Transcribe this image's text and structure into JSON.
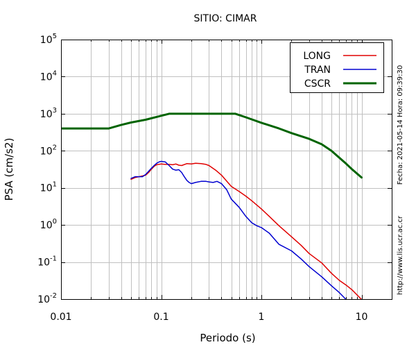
{
  "chart_data": {
    "type": "line",
    "title": "SITIO: CIMAR",
    "xlabel": "Periodo (s)",
    "ylabel": "PSA (cm/s2)",
    "xscale": "log",
    "yscale": "log",
    "xlim": [
      0.01,
      20
    ],
    "ylim": [
      0.01,
      100000
    ],
    "grid": true,
    "legend_placement": "top-right",
    "x_ticks": [
      {
        "value": 0.01,
        "label": "0.01"
      },
      {
        "value": 0.1,
        "label": "0.1"
      },
      {
        "value": 1,
        "label": "1"
      },
      {
        "value": 10,
        "label": "10"
      }
    ],
    "y_ticks": [
      {
        "value": 0.01,
        "base": "10",
        "exp": "-2"
      },
      {
        "value": 0.1,
        "base": "10",
        "exp": "-1"
      },
      {
        "value": 1,
        "base": "10",
        "exp": "0"
      },
      {
        "value": 10,
        "base": "10",
        "exp": "1"
      },
      {
        "value": 100,
        "base": "10",
        "exp": "2"
      },
      {
        "value": 1000,
        "base": "10",
        "exp": "3"
      },
      {
        "value": 10000,
        "base": "10",
        "exp": "4"
      },
      {
        "value": 100000,
        "base": "10",
        "exp": "5"
      }
    ],
    "side_texts": [
      "Fecha: 2021-05-14 Hora: 09:39:30",
      "http://www.lis.ucr.ac.cr"
    ],
    "series": [
      {
        "name": "LONG",
        "color": "#e00000",
        "width": 1.5,
        "points": [
          [
            0.05,
            17
          ],
          [
            0.055,
            19
          ],
          [
            0.06,
            20
          ],
          [
            0.065,
            21
          ],
          [
            0.07,
            22
          ],
          [
            0.075,
            26
          ],
          [
            0.08,
            32
          ],
          [
            0.085,
            38
          ],
          [
            0.09,
            42
          ],
          [
            0.1,
            44
          ],
          [
            0.11,
            43
          ],
          [
            0.12,
            43
          ],
          [
            0.13,
            42
          ],
          [
            0.14,
            44
          ],
          [
            0.15,
            41
          ],
          [
            0.16,
            40
          ],
          [
            0.18,
            45
          ],
          [
            0.2,
            44
          ],
          [
            0.22,
            46
          ],
          [
            0.25,
            45
          ],
          [
            0.28,
            43
          ],
          [
            0.3,
            40
          ],
          [
            0.35,
            30
          ],
          [
            0.4,
            22
          ],
          [
            0.5,
            11
          ],
          [
            0.6,
            8
          ],
          [
            0.7,
            6
          ],
          [
            0.8,
            4.5
          ],
          [
            1,
            2.7
          ],
          [
            1.2,
            1.7
          ],
          [
            1.5,
            0.95
          ],
          [
            2,
            0.48
          ],
          [
            2.5,
            0.28
          ],
          [
            3,
            0.17
          ],
          [
            4,
            0.095
          ],
          [
            5,
            0.05
          ],
          [
            6,
            0.032
          ],
          [
            7,
            0.024
          ],
          [
            8,
            0.018
          ],
          [
            9,
            0.013
          ],
          [
            10,
            0.0098
          ]
        ]
      },
      {
        "name": "TRAN",
        "color": "#0000d0",
        "width": 1.5,
        "points": [
          [
            0.05,
            18
          ],
          [
            0.055,
            20
          ],
          [
            0.06,
            20
          ],
          [
            0.065,
            20
          ],
          [
            0.07,
            23
          ],
          [
            0.075,
            28
          ],
          [
            0.08,
            34
          ],
          [
            0.085,
            40
          ],
          [
            0.09,
            46
          ],
          [
            0.095,
            50
          ],
          [
            0.1,
            52
          ],
          [
            0.11,
            50
          ],
          [
            0.12,
            40
          ],
          [
            0.13,
            32
          ],
          [
            0.14,
            30
          ],
          [
            0.15,
            31
          ],
          [
            0.16,
            26
          ],
          [
            0.17,
            20
          ],
          [
            0.18,
            16
          ],
          [
            0.19,
            14
          ],
          [
            0.2,
            13
          ],
          [
            0.22,
            14
          ],
          [
            0.25,
            15
          ],
          [
            0.28,
            15
          ],
          [
            0.3,
            14.5
          ],
          [
            0.33,
            14
          ],
          [
            0.36,
            15
          ],
          [
            0.4,
            13
          ],
          [
            0.45,
            9
          ],
          [
            0.5,
            5
          ],
          [
            0.6,
            3
          ],
          [
            0.7,
            1.7
          ],
          [
            0.8,
            1.15
          ],
          [
            0.9,
            0.95
          ],
          [
            1,
            0.85
          ],
          [
            1.2,
            0.6
          ],
          [
            1.5,
            0.3
          ],
          [
            2,
            0.2
          ],
          [
            2.5,
            0.12
          ],
          [
            3,
            0.075
          ],
          [
            4,
            0.04
          ],
          [
            5,
            0.023
          ],
          [
            6,
            0.015
          ],
          [
            7,
            0.0098
          ]
        ]
      },
      {
        "name": "CSCR",
        "color": "#006400",
        "width": 3,
        "points": [
          [
            0.01,
            400
          ],
          [
            0.02,
            400
          ],
          [
            0.03,
            400
          ],
          [
            0.04,
            500
          ],
          [
            0.05,
            580
          ],
          [
            0.07,
            690
          ],
          [
            0.1,
            880
          ],
          [
            0.12,
            1000
          ],
          [
            0.15,
            1000
          ],
          [
            0.2,
            1000
          ],
          [
            0.3,
            1000
          ],
          [
            0.4,
            1000
          ],
          [
            0.55,
            1000
          ],
          [
            0.7,
            800
          ],
          [
            1,
            570
          ],
          [
            1.5,
            400
          ],
          [
            2,
            300
          ],
          [
            3,
            210
          ],
          [
            4,
            150
          ],
          [
            5,
            100
          ],
          [
            6,
            65
          ],
          [
            7,
            45
          ],
          [
            8,
            32
          ],
          [
            10,
            19
          ]
        ]
      }
    ]
  }
}
